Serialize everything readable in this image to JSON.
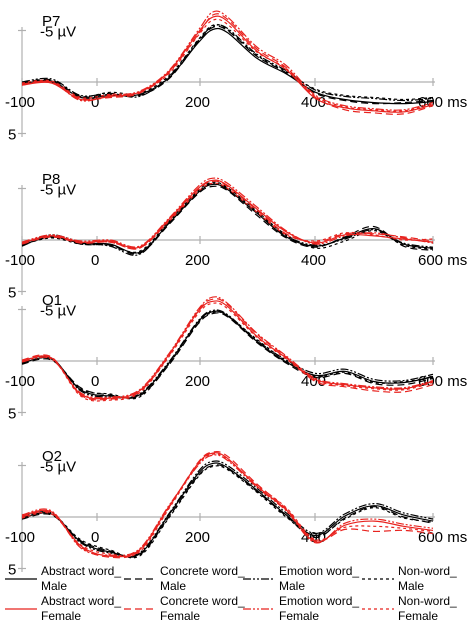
{
  "chart_data": [
    {
      "type": "line",
      "title": "P7",
      "y_tick_neg_label": "-5 µV",
      "y_tick_pos_label": "5",
      "x_tick_labels": [
        "-100",
        "0",
        "200",
        "400",
        "600 ms"
      ],
      "x": [
        -100,
        -50,
        0,
        50,
        100,
        150,
        200,
        225,
        250,
        300,
        350,
        400,
        450,
        500,
        550,
        600
      ],
      "xlim": [
        -100,
        600
      ],
      "ylim": [
        -7,
        5
      ],
      "series": [
        {
          "name": "Abstract word_ Male",
          "values": [
            0.2,
            -0.1,
            1.5,
            1.3,
            1.2,
            -0.4,
            -3.8,
            -5.1,
            -4.8,
            -2.3,
            -0.8,
            1.0,
            1.7,
            2.0,
            2.1,
            1.9
          ]
        },
        {
          "name": "Concrete word_ Male",
          "values": [
            0.1,
            -0.2,
            1.4,
            1.2,
            1.3,
            -0.3,
            -3.9,
            -5.3,
            -5.0,
            -2.5,
            -0.9,
            1.1,
            1.8,
            2.1,
            2.0,
            1.8
          ]
        },
        {
          "name": "Emotion word_ Male",
          "values": [
            0.0,
            -0.3,
            1.3,
            1.1,
            1.4,
            -0.5,
            -4.0,
            -5.4,
            -5.2,
            -2.7,
            -1.1,
            0.8,
            1.4,
            1.6,
            1.8,
            1.6
          ]
        },
        {
          "name": "Non-word_ Male",
          "values": [
            0.2,
            0.0,
            1.4,
            1.0,
            1.1,
            -0.6,
            -4.1,
            -5.5,
            -5.1,
            -2.6,
            -1.0,
            0.7,
            1.3,
            1.5,
            1.7,
            1.5
          ]
        },
        {
          "name": "Abstract word_ Female",
          "values": [
            0.3,
            0.1,
            1.7,
            1.4,
            1.0,
            -1.0,
            -4.8,
            -6.3,
            -5.9,
            -3.0,
            -1.2,
            1.6,
            2.5,
            2.8,
            2.9,
            2.2
          ]
        },
        {
          "name": "Concrete word_ Female",
          "values": [
            0.2,
            0.0,
            1.6,
            1.5,
            1.1,
            -0.9,
            -4.6,
            -6.5,
            -6.1,
            -3.2,
            -1.4,
            1.5,
            2.7,
            3.0,
            3.1,
            2.3
          ]
        },
        {
          "name": "Emotion word_ Female",
          "values": [
            0.3,
            0.0,
            1.8,
            1.3,
            0.9,
            -1.1,
            -5.0,
            -6.8,
            -6.3,
            -3.4,
            -1.6,
            1.3,
            2.3,
            2.6,
            2.7,
            2.0
          ]
        },
        {
          "name": "Non-word_ Female",
          "values": [
            0.1,
            -0.1,
            1.5,
            1.2,
            1.0,
            -0.8,
            -4.5,
            -6.0,
            -5.6,
            -2.9,
            -1.3,
            1.4,
            2.4,
            2.7,
            2.8,
            2.1
          ]
        }
      ]
    },
    {
      "type": "line",
      "title": "P8",
      "y_tick_neg_label": "-5 µV",
      "y_tick_pos_label": "5",
      "x_tick_labels": [
        "-100",
        "0",
        "200",
        "400",
        "600 ms"
      ],
      "x": [
        -100,
        -50,
        0,
        50,
        100,
        150,
        200,
        225,
        250,
        300,
        350,
        400,
        450,
        500,
        550,
        600
      ],
      "xlim": [
        -100,
        600
      ],
      "ylim": [
        -7,
        5
      ],
      "series": [
        {
          "name": "Abstract word_ Male",
          "values": [
            0.5,
            -0.3,
            0.3,
            0.4,
            1.2,
            -1.6,
            -4.6,
            -5.4,
            -4.9,
            -2.6,
            -0.3,
            0.6,
            -0.2,
            -1.1,
            0.4,
            0.8
          ]
        },
        {
          "name": "Concrete word_ Male",
          "values": [
            0.6,
            -0.4,
            0.4,
            0.5,
            1.3,
            -1.5,
            -4.5,
            -5.2,
            -4.8,
            -2.4,
            -0.2,
            0.7,
            -0.3,
            -1.3,
            0.6,
            1.0
          ]
        },
        {
          "name": "Emotion word_ Male",
          "values": [
            0.4,
            -0.5,
            0.2,
            0.6,
            1.4,
            -1.7,
            -4.7,
            -5.5,
            -5.0,
            -2.7,
            -0.4,
            0.5,
            -0.1,
            -1.0,
            0.3,
            0.7
          ]
        },
        {
          "name": "Non-word_ Male",
          "values": [
            0.5,
            -0.2,
            0.4,
            0.5,
            1.1,
            -1.8,
            -4.8,
            -5.6,
            -5.1,
            -2.8,
            -0.5,
            0.8,
            0.1,
            -0.9,
            0.5,
            0.9
          ]
        },
        {
          "name": "Abstract word_ Female",
          "values": [
            0.3,
            -0.4,
            0.2,
            0.1,
            0.7,
            -2.0,
            -5.0,
            -5.8,
            -5.3,
            -3.0,
            -0.8,
            0.3,
            -0.5,
            -0.4,
            -0.1,
            0.2
          ]
        },
        {
          "name": "Concrete word_ Female",
          "values": [
            0.4,
            -0.3,
            0.3,
            0.2,
            0.8,
            -1.9,
            -4.9,
            -5.7,
            -5.2,
            -2.9,
            -0.6,
            0.2,
            -0.6,
            -0.6,
            -0.3,
            0.1
          ]
        },
        {
          "name": "Emotion word_ Female",
          "values": [
            0.2,
            -0.5,
            0.1,
            0.0,
            0.6,
            -2.1,
            -5.2,
            -6.0,
            -5.5,
            -3.2,
            -0.9,
            0.4,
            -0.4,
            -0.7,
            -0.2,
            0.3
          ]
        },
        {
          "name": "Non-word_ Female",
          "values": [
            0.3,
            -0.4,
            0.2,
            0.2,
            0.8,
            -1.8,
            -4.7,
            -5.5,
            -5.0,
            -2.7,
            -0.5,
            0.1,
            -0.7,
            -0.5,
            0.0,
            -0.1
          ]
        }
      ]
    },
    {
      "type": "line",
      "title": "O1",
      "y_tick_neg_label": "-5 µV",
      "y_tick_pos_label": "5",
      "x_tick_labels": [
        "-100",
        "0",
        "200",
        "400",
        "600 ms"
      ],
      "x": [
        -100,
        -50,
        0,
        50,
        100,
        150,
        200,
        225,
        250,
        300,
        350,
        400,
        450,
        500,
        550,
        600
      ],
      "xlim": [
        -100,
        600
      ],
      "ylim": [
        -7,
        5
      ],
      "series": [
        {
          "name": "Abstract word_ Male",
          "values": [
            0.2,
            -0.2,
            2.8,
            3.4,
            3.3,
            0.2,
            -3.8,
            -4.8,
            -4.4,
            -1.9,
            0.1,
            1.4,
            1.0,
            2.0,
            2.1,
            1.5
          ]
        },
        {
          "name": "Concrete word_ Male",
          "values": [
            0.3,
            -0.1,
            2.6,
            3.3,
            3.4,
            0.4,
            -3.6,
            -4.6,
            -4.3,
            -1.8,
            0.2,
            1.6,
            1.2,
            2.2,
            2.3,
            1.7
          ]
        },
        {
          "name": "Emotion word_ Male",
          "values": [
            0.1,
            -0.3,
            2.9,
            3.5,
            3.2,
            0.1,
            -3.9,
            -4.9,
            -4.5,
            -2.0,
            -0.1,
            1.2,
            0.8,
            1.8,
            1.9,
            1.3
          ]
        },
        {
          "name": "Non-word_ Male",
          "values": [
            0.2,
            -0.2,
            2.7,
            3.2,
            3.5,
            0.3,
            -3.7,
            -4.7,
            -4.4,
            -2.1,
            0.0,
            1.5,
            1.1,
            2.1,
            2.0,
            1.6
          ]
        },
        {
          "name": "Abstract word_ Female",
          "values": [
            0.0,
            -0.3,
            3.2,
            3.6,
            2.9,
            -0.6,
            -4.8,
            -5.8,
            -5.3,
            -2.4,
            -0.3,
            1.8,
            2.3,
            2.6,
            2.7,
            2.0
          ]
        },
        {
          "name": "Concrete word_ Female",
          "values": [
            -0.1,
            -0.4,
            3.3,
            3.7,
            3.0,
            -0.5,
            -4.9,
            -6.0,
            -5.5,
            -2.6,
            -0.4,
            2.0,
            2.5,
            2.9,
            3.0,
            2.3
          ]
        },
        {
          "name": "Emotion word_ Female",
          "values": [
            0.1,
            -0.2,
            3.1,
            3.5,
            2.8,
            -0.7,
            -5.0,
            -6.2,
            -5.6,
            -2.7,
            -0.5,
            1.7,
            2.2,
            2.5,
            2.6,
            1.9
          ]
        },
        {
          "name": "Non-word_ Female",
          "values": [
            0.0,
            -0.3,
            3.4,
            3.8,
            3.1,
            -0.4,
            -4.6,
            -5.6,
            -5.1,
            -2.3,
            -0.2,
            1.9,
            2.4,
            2.7,
            2.8,
            2.1
          ]
        }
      ]
    },
    {
      "type": "line",
      "title": "O2",
      "y_tick_neg_label": "-5 µV",
      "y_tick_pos_label": "5",
      "x_tick_labels": [
        "-100",
        "0",
        "200",
        "400",
        "600 ms"
      ],
      "x": [
        -100,
        -50,
        0,
        50,
        100,
        150,
        200,
        225,
        250,
        300,
        350,
        400,
        450,
        500,
        550,
        600
      ],
      "xlim": [
        -100,
        600
      ],
      "ylim": [
        -7,
        5
      ],
      "series": [
        {
          "name": "Abstract word_ Male",
          "values": [
            0.1,
            -0.3,
            2.4,
            3.4,
            3.6,
            -0.2,
            -4.2,
            -5.2,
            -4.8,
            -2.6,
            -0.2,
            1.8,
            -0.1,
            -1.1,
            -0.2,
            0.4
          ]
        },
        {
          "name": "Concrete word_ Male",
          "values": [
            0.2,
            -0.2,
            2.3,
            3.3,
            3.7,
            0.0,
            -4.0,
            -5.0,
            -4.7,
            -2.5,
            -0.1,
            2.0,
            0.1,
            -1.0,
            0.0,
            0.6
          ]
        },
        {
          "name": "Emotion word_ Male",
          "values": [
            0.0,
            -0.4,
            2.5,
            3.5,
            3.5,
            -0.3,
            -4.4,
            -5.4,
            -5.0,
            -2.8,
            -0.4,
            1.6,
            -0.3,
            -1.3,
            -0.4,
            0.2
          ]
        },
        {
          "name": "Non-word_ Male",
          "values": [
            0.1,
            -0.3,
            2.2,
            3.2,
            3.8,
            0.1,
            -3.9,
            -4.9,
            -4.6,
            -2.4,
            0.0,
            1.9,
            0.2,
            -0.9,
            0.1,
            0.5
          ]
        },
        {
          "name": "Abstract word_ Female",
          "values": [
            -0.1,
            -0.5,
            2.8,
            3.8,
            3.2,
            -1.0,
            -5.2,
            -6.2,
            -5.7,
            -3.0,
            -0.7,
            2.4,
            0.8,
            0.4,
            0.9,
            1.3
          ]
        },
        {
          "name": "Concrete word_ Female",
          "values": [
            0.0,
            -0.4,
            2.9,
            3.9,
            3.3,
            -0.9,
            -5.3,
            -6.3,
            -5.9,
            -3.2,
            -0.8,
            2.3,
            1.2,
            1.4,
            1.3,
            1.6
          ]
        },
        {
          "name": "Emotion word_ Female",
          "values": [
            -0.2,
            -0.6,
            3.0,
            3.7,
            3.1,
            -1.1,
            -5.0,
            -6.0,
            -5.5,
            -2.9,
            -0.6,
            2.5,
            0.6,
            0.2,
            0.7,
            1.1
          ]
        },
        {
          "name": "Non-word_ Female",
          "values": [
            0.1,
            -0.3,
            2.7,
            3.6,
            3.4,
            -0.8,
            -5.1,
            -6.1,
            -5.6,
            -3.1,
            -0.9,
            2.2,
            1.0,
            0.9,
            1.1,
            1.4
          ]
        }
      ]
    }
  ],
  "legend": [
    {
      "line1": "Abstract word_",
      "line2": "Male",
      "color": "#000000",
      "dash": "solid"
    },
    {
      "line1": "Concrete word_",
      "line2": "Male",
      "color": "#000000",
      "dash": "dash"
    },
    {
      "line1": "Emotion word_",
      "line2": "Male",
      "color": "#000000",
      "dash": "dashdotdot"
    },
    {
      "line1": "Non-word_",
      "line2": "Male",
      "color": "#000000",
      "dash": "dot"
    },
    {
      "line1": "Abstract word_",
      "line2": "Female",
      "color": "#e8231f",
      "dash": "solid"
    },
    {
      "line1": "Concrete word_",
      "line2": "Female",
      "color": "#e8231f",
      "dash": "dash"
    },
    {
      "line1": "Emotion word_",
      "line2": "Female",
      "color": "#e8231f",
      "dash": "dashdotdot"
    },
    {
      "line1": "Non-word_",
      "line2": "Female",
      "color": "#e8231f",
      "dash": "dot"
    }
  ],
  "colors": {
    "male": "#000000",
    "female": "#e8231f",
    "axis": "#b0b0b0"
  }
}
